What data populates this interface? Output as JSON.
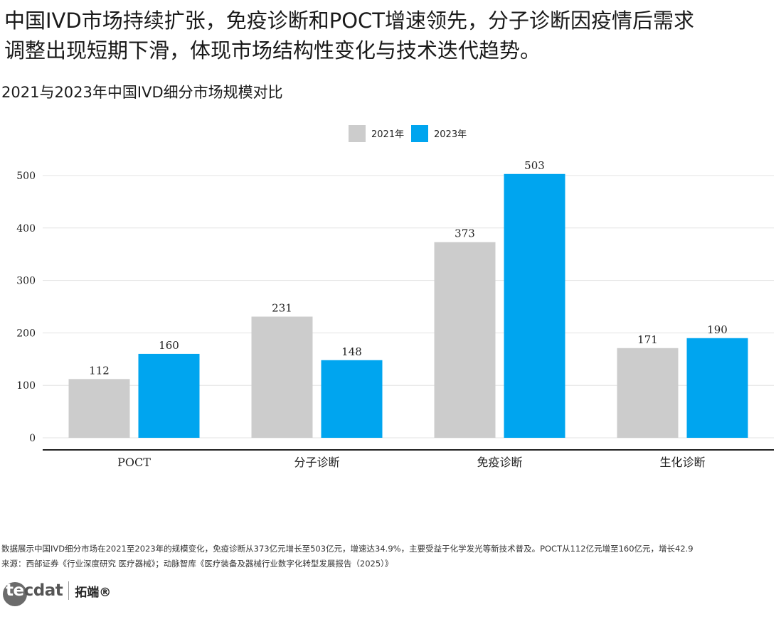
{
  "headline": "中国IVD市场持续扩张，免疫诊断和POCT增速领先，分子诊断因疫情后需求\n调整出现短期下滑，体现市场结构性变化与技术迭代趋势。",
  "subtitle": "2021与2023年中国IVD细分市场规模对比",
  "chart_data": {
    "type": "bar",
    "title": "2021与2023年中国IVD细分市场规模对比",
    "categories": [
      "POCT",
      "分子诊断",
      "免疫诊断",
      "生化诊断"
    ],
    "series": [
      {
        "name": "2021年",
        "color": "#cccccc",
        "values": [
          112,
          231,
          373,
          171
        ]
      },
      {
        "name": "2023年",
        "color": "#00a5ef",
        "values": [
          160,
          148,
          503,
          190
        ]
      }
    ],
    "yticks": [
      0,
      100,
      200,
      300,
      400,
      500
    ],
    "ylim": [
      0,
      530
    ],
    "xlabel": "",
    "ylabel": "",
    "legend_position": "top-center",
    "grid": true
  },
  "footnote": {
    "note": "数据展示中国IVD细分市场在2021至2023年的规模变化，免疫诊断从373亿元增长至503亿元，增速达34.9%，主要受益于化学发光等新技术普及。POCT从112亿元增至160亿元，增长42.9",
    "source": "来源：西部证券《行业深度研究 医疗器械》；动脉智库《医疗装备及器械行业数字化转型发展报告（2025）》"
  },
  "logo": {
    "word": "tecdat",
    "word_a": "te",
    "word_b": "cdat",
    "cn": "拓端®"
  }
}
